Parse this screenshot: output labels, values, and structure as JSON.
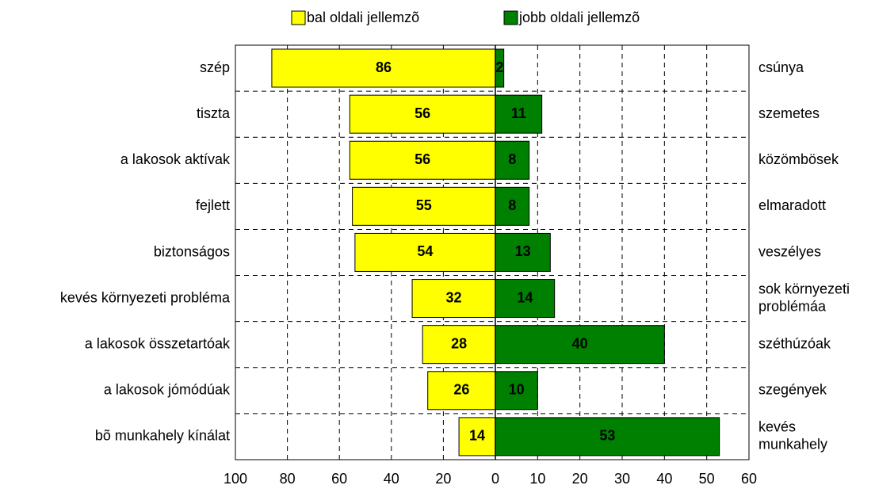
{
  "chart_data": {
    "type": "diverging_bar",
    "categories": [
      "szép",
      "tiszta",
      "a lakosok aktívak",
      "fejlett",
      "biztonságos",
      "kevés környezeti probléma",
      "a lakosok összetartóak",
      "a lakosok jómódúak",
      "bõ munkahely kínálat"
    ],
    "right_labels": [
      [
        "csúnya"
      ],
      [
        "szemetes"
      ],
      [
        "közömbösek"
      ],
      [
        "elmaradott"
      ],
      [
        "veszélyes"
      ],
      [
        "sok környezeti",
        "problémáa"
      ],
      [
        "széthúzóak"
      ],
      [
        "szegények"
      ],
      [
        "kevés",
        "munkahely"
      ]
    ],
    "series": [
      {
        "name": "bal oldali jellemzõ",
        "color": "#ffff00",
        "values": [
          86,
          56,
          56,
          55,
          54,
          32,
          28,
          26,
          14
        ]
      },
      {
        "name": "jobb oldali jellemzõ",
        "color": "#008000",
        "values": [
          2,
          11,
          8,
          8,
          13,
          14,
          40,
          10,
          53
        ]
      }
    ],
    "xlim": [
      0,
      100
    ],
    "xticks": [
      100,
      80,
      60,
      40,
      20,
      0
    ],
    "x2lim": [
      0,
      60
    ],
    "x2ticks": [
      10,
      20,
      30,
      40,
      50,
      60
    ],
    "grid": true,
    "legend": "top"
  }
}
